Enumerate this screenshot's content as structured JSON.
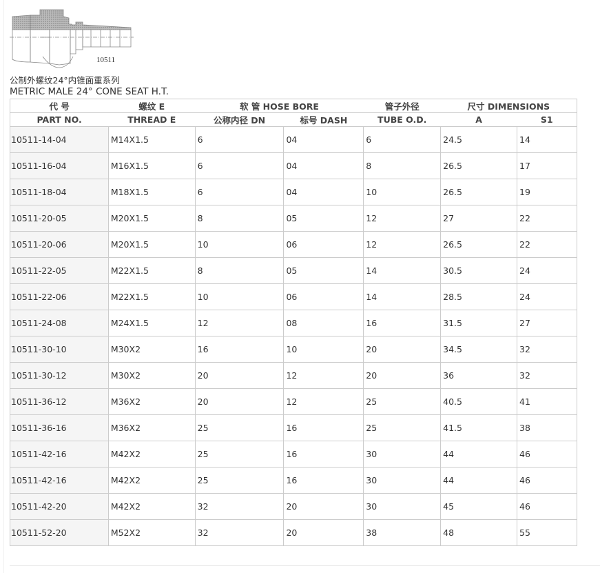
{
  "drawing": {
    "label": "10511"
  },
  "title_cn": "公制外螺纹24°内锥面重系列",
  "title_en": "METRIC MALE 24° CONE SEAT H.T.",
  "header_row1": [
    "代 号",
    "螺纹 E",
    "软 管 HOSE BORE",
    "管子外径",
    "尺寸 DIMENSIONS"
  ],
  "header_row2": [
    "PART NO.",
    "THREAD E",
    "公称内径 DN",
    "标号 DASH",
    "TUBE O.D.",
    "A",
    "S1"
  ],
  "rows": [
    [
      "10511-14-04",
      "M14X1.5",
      "6",
      "04",
      "6",
      "24.5",
      "14"
    ],
    [
      "10511-16-04",
      "M16X1.5",
      "6",
      "04",
      "8",
      "26.5",
      "17"
    ],
    [
      "10511-18-04",
      "M18X1.5",
      "6",
      "04",
      "10",
      "26.5",
      "19"
    ],
    [
      "10511-20-05",
      "M20X1.5",
      "8",
      "05",
      "12",
      "27",
      "22"
    ],
    [
      "10511-20-06",
      "M20X1.5",
      "10",
      "06",
      "12",
      "26.5",
      "22"
    ],
    [
      "10511-22-05",
      "M22X1.5",
      "8",
      "05",
      "14",
      "30.5",
      "24"
    ],
    [
      "10511-22-06",
      "M22X1.5",
      "10",
      "06",
      "14",
      "28.5",
      "24"
    ],
    [
      "10511-24-08",
      "M24X1.5",
      "12",
      "08",
      "16",
      "31.5",
      "27"
    ],
    [
      "10511-30-10",
      "M30X2",
      "16",
      "10",
      "20",
      "34.5",
      "32"
    ],
    [
      "10511-30-12",
      "M30X2",
      "20",
      "12",
      "20",
      "36",
      "32"
    ],
    [
      "10511-36-12",
      "M36X2",
      "20",
      "12",
      "25",
      "40.5",
      "41"
    ],
    [
      "10511-36-16",
      "M36X2",
      "25",
      "16",
      "25",
      "41.5",
      "38"
    ],
    [
      "10511-42-16",
      "M42X2",
      "25",
      "16",
      "30",
      "44",
      "46"
    ],
    [
      "10511-42-16",
      "M42X2",
      "25",
      "16",
      "30",
      "44",
      "46"
    ],
    [
      "10511-42-20",
      "M42X2",
      "32",
      "20",
      "30",
      "45",
      "46"
    ],
    [
      "10511-52-20",
      "M52X2",
      "32",
      "20",
      "38",
      "48",
      "55"
    ]
  ]
}
